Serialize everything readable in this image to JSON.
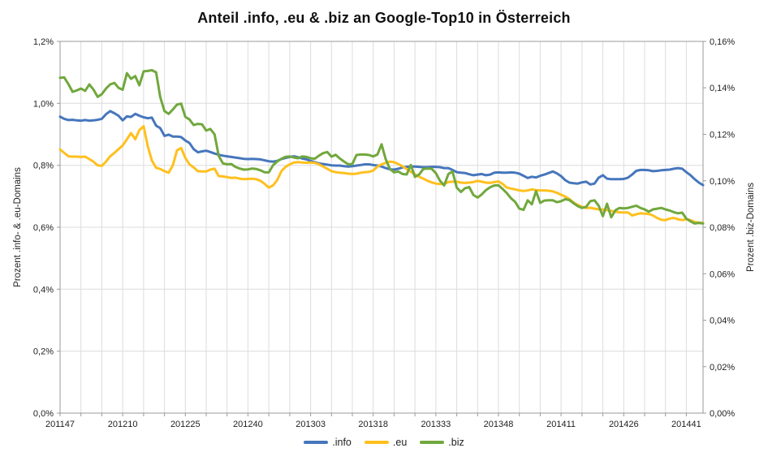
{
  "title": "Anteil .info, .eu & .biz an Google-Top10 in Österreich",
  "axes": {
    "left": {
      "title": "Prozent .info- & .eu-Domains",
      "tick_values": [
        0,
        0.2,
        0.4,
        0.6,
        0.8,
        1.0,
        1.2
      ],
      "tick_labels": [
        "0,0%",
        "0,2%",
        "0,4%",
        "0,6%",
        "0,8%",
        "1,0%",
        "1,2%"
      ]
    },
    "right": {
      "title": "Prozent .biz-Domains",
      "tick_values": [
        0,
        0.02,
        0.04,
        0.06,
        0.08,
        0.1,
        0.12,
        0.14,
        0.16
      ],
      "tick_labels": [
        "0,00%",
        "0,02%",
        "0,04%",
        "0,06%",
        "0,08%",
        "0,10%",
        "0,12%",
        "0,14%",
        "0,16%"
      ]
    },
    "x": {
      "tick_week_indices": [
        0,
        15,
        30,
        45,
        60,
        75,
        90,
        105,
        120,
        135,
        150
      ],
      "tick_labels": [
        "201147",
        "201210",
        "201225",
        "201240",
        "201303",
        "201318",
        "201333",
        "201348",
        "201411",
        "201426",
        "201441"
      ],
      "minor_grid_step_weeks": 5
    }
  },
  "legend": [
    {
      "label": ".info",
      "color": "#4676BC"
    },
    {
      "label": ".eu",
      "color": "#FFC01E"
    },
    {
      "label": ".biz",
      "color": "#71A83D"
    }
  ],
  "colors": {
    "grid": "#dcdcdc",
    "border": "#9a9a9a",
    "text": "#222222"
  },
  "chart_data": {
    "type": "line",
    "x_unit": "ISO week (YYYYWW)",
    "x_start": "201147",
    "x_end": "201445",
    "weeks_count": 155,
    "weeks_per_year": {
      "2011": 52,
      "2012": 52,
      "2013": 52,
      "2014": 52
    },
    "ylim_left": [
      0,
      1.2
    ],
    "ylim_right": [
      0,
      0.16
    ],
    "grid": true,
    "legend_position": "bottom",
    "series": [
      {
        "name": ".info",
        "axis": "left",
        "color": "#4676BC",
        "values": [
          0.957,
          0.95,
          0.946,
          0.947,
          0.945,
          0.944,
          0.946,
          0.944,
          0.945,
          0.947,
          0.95,
          0.965,
          0.975,
          0.968,
          0.96,
          0.945,
          0.958,
          0.956,
          0.966,
          0.96,
          0.955,
          0.952,
          0.954,
          0.928,
          0.92,
          0.895,
          0.899,
          0.893,
          0.893,
          0.891,
          0.88,
          0.872,
          0.852,
          0.842,
          0.845,
          0.847,
          0.843,
          0.838,
          0.834,
          0.831,
          0.829,
          0.827,
          0.825,
          0.823,
          0.821,
          0.82,
          0.821,
          0.82,
          0.819,
          0.816,
          0.813,
          0.812,
          0.814,
          0.82,
          0.824,
          0.827,
          0.829,
          0.826,
          0.822,
          0.819,
          0.814,
          0.81,
          0.806,
          0.804,
          0.802,
          0.8,
          0.799,
          0.799,
          0.797,
          0.796,
          0.797,
          0.799,
          0.801,
          0.803,
          0.803,
          0.801,
          0.799,
          0.796,
          0.791,
          0.787,
          0.786,
          0.789,
          0.793,
          0.795,
          0.796,
          0.796,
          0.795,
          0.794,
          0.794,
          0.795,
          0.795,
          0.794,
          0.791,
          0.791,
          0.785,
          0.778,
          0.776,
          0.775,
          0.771,
          0.768,
          0.77,
          0.772,
          0.768,
          0.77,
          0.776,
          0.777,
          0.776,
          0.776,
          0.777,
          0.776,
          0.773,
          0.766,
          0.759,
          0.763,
          0.761,
          0.766,
          0.77,
          0.775,
          0.78,
          0.774,
          0.765,
          0.752,
          0.744,
          0.742,
          0.741,
          0.745,
          0.747,
          0.738,
          0.741,
          0.76,
          0.768,
          0.757,
          0.755,
          0.755,
          0.755,
          0.756,
          0.76,
          0.77,
          0.782,
          0.785,
          0.785,
          0.784,
          0.781,
          0.782,
          0.784,
          0.785,
          0.786,
          0.789,
          0.791,
          0.789,
          0.778,
          0.768,
          0.755,
          0.744,
          0.736
        ]
      },
      {
        "name": ".eu",
        "axis": "left",
        "color": "#FFC01E",
        "values": [
          0.851,
          0.84,
          0.829,
          0.828,
          0.828,
          0.827,
          0.828,
          0.82,
          0.812,
          0.8,
          0.798,
          0.812,
          0.829,
          0.84,
          0.852,
          0.864,
          0.884,
          0.904,
          0.884,
          0.914,
          0.926,
          0.862,
          0.815,
          0.792,
          0.788,
          0.781,
          0.776,
          0.8,
          0.848,
          0.856,
          0.824,
          0.803,
          0.793,
          0.781,
          0.78,
          0.78,
          0.786,
          0.789,
          0.765,
          0.764,
          0.762,
          0.759,
          0.76,
          0.757,
          0.755,
          0.756,
          0.757,
          0.755,
          0.75,
          0.74,
          0.728,
          0.735,
          0.752,
          0.781,
          0.795,
          0.803,
          0.809,
          0.81,
          0.809,
          0.808,
          0.809,
          0.808,
          0.803,
          0.796,
          0.789,
          0.781,
          0.778,
          0.776,
          0.775,
          0.773,
          0.772,
          0.773,
          0.776,
          0.778,
          0.779,
          0.783,
          0.796,
          0.803,
          0.808,
          0.812,
          0.81,
          0.804,
          0.797,
          0.788,
          0.779,
          0.771,
          0.763,
          0.757,
          0.75,
          0.745,
          0.741,
          0.74,
          0.739,
          0.746,
          0.747,
          0.747,
          0.744,
          0.743,
          0.744,
          0.746,
          0.75,
          0.747,
          0.744,
          0.743,
          0.746,
          0.748,
          0.74,
          0.728,
          0.725,
          0.722,
          0.719,
          0.717,
          0.719,
          0.722,
          0.72,
          0.719,
          0.719,
          0.718,
          0.716,
          0.711,
          0.705,
          0.699,
          0.691,
          0.68,
          0.672,
          0.666,
          0.662,
          0.663,
          0.66,
          0.658,
          0.657,
          0.655,
          0.653,
          0.65,
          0.648,
          0.648,
          0.648,
          0.638,
          0.642,
          0.645,
          0.644,
          0.643,
          0.638,
          0.63,
          0.624,
          0.623,
          0.628,
          0.63,
          0.626,
          0.623,
          0.626,
          0.623,
          0.617,
          0.615,
          0.614
        ]
      },
      {
        "name": ".biz",
        "axis": "right",
        "color": "#71A83D",
        "values": [
          0.1443,
          0.1445,
          0.1416,
          0.1383,
          0.1389,
          0.1397,
          0.1387,
          0.1415,
          0.1393,
          0.1361,
          0.1373,
          0.1397,
          0.1415,
          0.1421,
          0.14,
          0.1392,
          0.1463,
          0.1439,
          0.1451,
          0.1411,
          0.1471,
          0.1473,
          0.1476,
          0.1467,
          0.136,
          0.13,
          0.1288,
          0.1307,
          0.1328,
          0.1332,
          0.1275,
          0.1264,
          0.124,
          0.1245,
          0.1243,
          0.1216,
          0.1223,
          0.12,
          0.1107,
          0.1075,
          0.1071,
          0.1072,
          0.106,
          0.1053,
          0.1048,
          0.1049,
          0.1053,
          0.1051,
          0.1045,
          0.1037,
          0.1036,
          0.1067,
          0.1083,
          0.1095,
          0.1103,
          0.1105,
          0.11,
          0.1097,
          0.1105,
          0.1103,
          0.1097,
          0.1095,
          0.1108,
          0.1119,
          0.1124,
          0.1104,
          0.1112,
          0.1096,
          0.1083,
          0.1071,
          0.1072,
          0.1111,
          0.1113,
          0.1113,
          0.1111,
          0.1105,
          0.1113,
          0.1157,
          0.1093,
          0.1051,
          0.1036,
          0.104,
          0.1029,
          0.1027,
          0.1068,
          0.1017,
          0.1027,
          0.1051,
          0.1053,
          0.1052,
          0.1033,
          0.1,
          0.098,
          0.1029,
          0.104,
          0.0971,
          0.0952,
          0.0968,
          0.0973,
          0.0939,
          0.0928,
          0.0941,
          0.096,
          0.0972,
          0.098,
          0.0981,
          0.0965,
          0.0947,
          0.0925,
          0.0909,
          0.088,
          0.0875,
          0.0916,
          0.0899,
          0.0955,
          0.0905,
          0.0915,
          0.0916,
          0.0916,
          0.0908,
          0.0912,
          0.0921,
          0.0917,
          0.0903,
          0.0891,
          0.0883,
          0.0888,
          0.0912,
          0.0916,
          0.0893,
          0.0848,
          0.0901,
          0.0843,
          0.0873,
          0.0883,
          0.0881,
          0.0883,
          0.0888,
          0.0893,
          0.0883,
          0.0877,
          0.0867,
          0.0877,
          0.088,
          0.0883,
          0.0877,
          0.0872,
          0.0865,
          0.086,
          0.0863,
          0.0837,
          0.0825,
          0.0816,
          0.0819,
          0.0816
        ]
      }
    ]
  }
}
